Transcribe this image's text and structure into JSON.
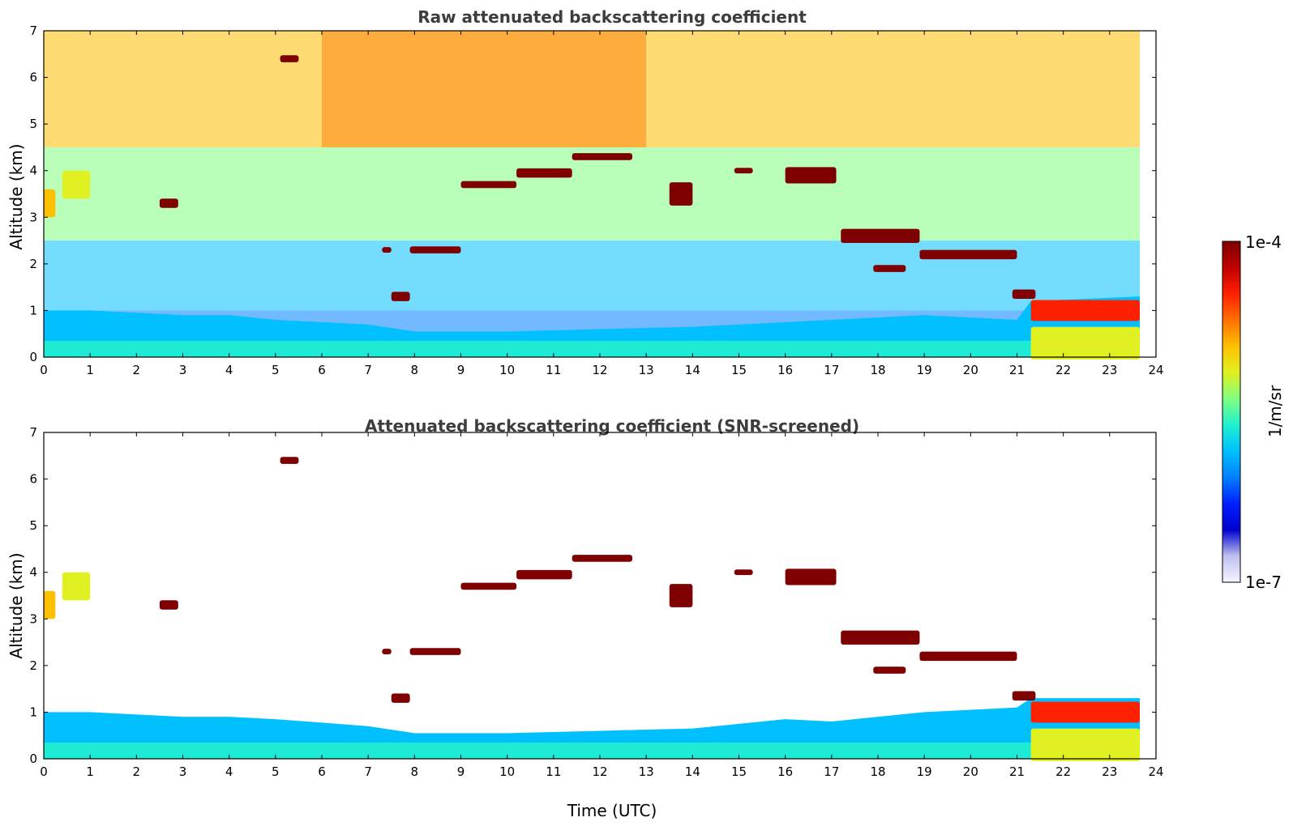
{
  "chart_data": [
    {
      "type": "heatmap",
      "title": "Raw attenuated backscattering coefficient",
      "xlabel": "",
      "ylabel": "Altitude (km)",
      "xlim": [
        0,
        24
      ],
      "ylim": [
        0,
        7
      ],
      "xticks": [
        "0",
        "1",
        "2",
        "3",
        "4",
        "5",
        "6",
        "7",
        "8",
        "9",
        "10",
        "11",
        "12",
        "13",
        "14",
        "15",
        "16",
        "17",
        "18",
        "19",
        "20",
        "21",
        "22",
        "23",
        "24"
      ],
      "yticks": [
        "0",
        "1",
        "2",
        "3",
        "4",
        "5",
        "6",
        "7"
      ],
      "data_end_hour": 23.65,
      "boundary_layer_top_km": [
        [
          0,
          1.0
        ],
        [
          1,
          1.0
        ],
        [
          3,
          0.9
        ],
        [
          4,
          0.9
        ],
        [
          5,
          0.8
        ],
        [
          7,
          0.7
        ],
        [
          8,
          0.55
        ],
        [
          10,
          0.55
        ],
        [
          12,
          0.6
        ],
        [
          14,
          0.65
        ],
        [
          16,
          0.75
        ],
        [
          17,
          0.8
        ],
        [
          19,
          0.9
        ],
        [
          21,
          0.8
        ],
        [
          21.3,
          1.2
        ],
        [
          23.65,
          1.3
        ]
      ],
      "cloud_layers": [
        {
          "t0": 0.0,
          "t1": 0.25,
          "z": 3.3,
          "h": 0.6,
          "level": 0.7
        },
        {
          "t0": 0.4,
          "t1": 1.0,
          "z": 3.7,
          "h": 0.6,
          "level": 0.62
        },
        {
          "t0": 2.5,
          "t1": 2.9,
          "z": 3.3,
          "h": 0.2,
          "level": 1.0
        },
        {
          "t0": 5.1,
          "t1": 5.5,
          "z": 6.4,
          "h": 0.15,
          "level": 1.0
        },
        {
          "t0": 7.3,
          "t1": 7.5,
          "z": 2.3,
          "h": 0.12,
          "level": 1.0
        },
        {
          "t0": 7.5,
          "t1": 7.9,
          "z": 1.3,
          "h": 0.2,
          "level": 1.0
        },
        {
          "t0": 7.9,
          "t1": 9.0,
          "z": 2.3,
          "h": 0.15,
          "level": 1.0
        },
        {
          "t0": 9.0,
          "t1": 10.2,
          "z": 3.7,
          "h": 0.15,
          "level": 1.0
        },
        {
          "t0": 10.2,
          "t1": 11.4,
          "z": 3.95,
          "h": 0.2,
          "level": 1.0
        },
        {
          "t0": 11.4,
          "t1": 12.7,
          "z": 4.3,
          "h": 0.15,
          "level": 1.0
        },
        {
          "t0": 13.5,
          "t1": 14.0,
          "z": 3.5,
          "h": 0.5,
          "level": 1.0
        },
        {
          "t0": 14.9,
          "t1": 15.3,
          "z": 4.0,
          "h": 0.12,
          "level": 1.0
        },
        {
          "t0": 16.0,
          "t1": 17.1,
          "z": 3.9,
          "h": 0.35,
          "level": 1.0
        },
        {
          "t0": 17.2,
          "t1": 18.9,
          "z": 2.6,
          "h": 0.3,
          "level": 1.0
        },
        {
          "t0": 17.9,
          "t1": 18.6,
          "z": 1.9,
          "h": 0.15,
          "level": 1.0
        },
        {
          "t0": 18.9,
          "t1": 21.0,
          "z": 2.2,
          "h": 0.2,
          "level": 1.0
        },
        {
          "t0": 20.9,
          "t1": 21.4,
          "z": 1.35,
          "h": 0.2,
          "level": 1.0
        },
        {
          "t0": 21.3,
          "t1": 23.65,
          "z": 1.0,
          "h": 0.45,
          "level": 0.82
        },
        {
          "t0": 21.3,
          "t1": 23.65,
          "z": 0.3,
          "h": 0.7,
          "level": 0.6
        }
      ]
    },
    {
      "type": "heatmap",
      "title": "Attenuated backscattering coefficient (SNR-screened)",
      "xlabel": "Time (UTC)",
      "ylabel": "Altitude (km)",
      "xlim": [
        0,
        24
      ],
      "ylim": [
        0,
        7
      ],
      "xticks": [
        "0",
        "1",
        "2",
        "3",
        "4",
        "5",
        "6",
        "7",
        "8",
        "9",
        "10",
        "11",
        "12",
        "13",
        "14",
        "15",
        "16",
        "17",
        "18",
        "19",
        "20",
        "21",
        "22",
        "23",
        "24"
      ],
      "yticks": [
        "0",
        "1",
        "2",
        "3",
        "4",
        "5",
        "6",
        "7"
      ],
      "data_end_hour": 23.65,
      "boundary_layer_top_km": [
        [
          0,
          1.0
        ],
        [
          1,
          1.0
        ],
        [
          3,
          0.9
        ],
        [
          4,
          0.9
        ],
        [
          5,
          0.85
        ],
        [
          7,
          0.7
        ],
        [
          8,
          0.55
        ],
        [
          10,
          0.55
        ],
        [
          12,
          0.6
        ],
        [
          14,
          0.65
        ],
        [
          16,
          0.85
        ],
        [
          17,
          0.8
        ],
        [
          19,
          1.0
        ],
        [
          21,
          1.1
        ],
        [
          21.3,
          1.3
        ],
        [
          23.65,
          1.3
        ]
      ],
      "cloud_layers": [
        {
          "t0": 0.0,
          "t1": 0.25,
          "z": 3.3,
          "h": 0.6,
          "level": 0.7
        },
        {
          "t0": 0.4,
          "t1": 1.0,
          "z": 3.7,
          "h": 0.6,
          "level": 0.62
        },
        {
          "t0": 2.5,
          "t1": 2.9,
          "z": 3.3,
          "h": 0.2,
          "level": 1.0
        },
        {
          "t0": 5.1,
          "t1": 5.5,
          "z": 6.4,
          "h": 0.15,
          "level": 1.0
        },
        {
          "t0": 7.3,
          "t1": 7.5,
          "z": 2.3,
          "h": 0.12,
          "level": 1.0
        },
        {
          "t0": 7.5,
          "t1": 7.9,
          "z": 1.3,
          "h": 0.2,
          "level": 1.0
        },
        {
          "t0": 7.9,
          "t1": 9.0,
          "z": 2.3,
          "h": 0.15,
          "level": 1.0
        },
        {
          "t0": 9.0,
          "t1": 10.2,
          "z": 3.7,
          "h": 0.15,
          "level": 1.0
        },
        {
          "t0": 10.2,
          "t1": 11.4,
          "z": 3.95,
          "h": 0.2,
          "level": 1.0
        },
        {
          "t0": 11.4,
          "t1": 12.7,
          "z": 4.3,
          "h": 0.15,
          "level": 1.0
        },
        {
          "t0": 13.5,
          "t1": 14.0,
          "z": 3.5,
          "h": 0.5,
          "level": 1.0
        },
        {
          "t0": 14.9,
          "t1": 15.3,
          "z": 4.0,
          "h": 0.12,
          "level": 1.0
        },
        {
          "t0": 16.0,
          "t1": 17.1,
          "z": 3.9,
          "h": 0.35,
          "level": 1.0
        },
        {
          "t0": 17.2,
          "t1": 18.9,
          "z": 2.6,
          "h": 0.3,
          "level": 1.0
        },
        {
          "t0": 17.9,
          "t1": 18.6,
          "z": 1.9,
          "h": 0.15,
          "level": 1.0
        },
        {
          "t0": 18.9,
          "t1": 21.0,
          "z": 2.2,
          "h": 0.2,
          "level": 1.0
        },
        {
          "t0": 20.9,
          "t1": 21.4,
          "z": 1.35,
          "h": 0.2,
          "level": 1.0
        },
        {
          "t0": 21.3,
          "t1": 23.65,
          "z": 1.0,
          "h": 0.45,
          "level": 0.82
        },
        {
          "t0": 21.3,
          "t1": 23.65,
          "z": 0.3,
          "h": 0.7,
          "level": 0.6
        }
      ]
    }
  ],
  "colorbar": {
    "label": "1/m/sr",
    "max_label": "1e-4",
    "min_label": "1e-7",
    "colors": [
      "#7f0000",
      "#c00000",
      "#ff2000",
      "#ff7000",
      "#ffc000",
      "#e0f020",
      "#80ff80",
      "#20f0d0",
      "#00c0ff",
      "#0080ff",
      "#0020ff",
      "#0000d0",
      "#c0c0f0",
      "#f4f4ff"
    ]
  }
}
